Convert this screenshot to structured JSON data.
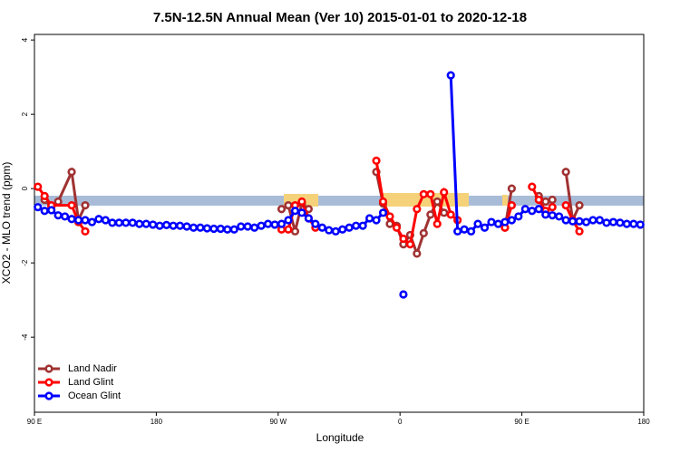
{
  "chart_data": {
    "type": "line",
    "title": "7.5N-12.5N Annual Mean (Ver 10)   2015-01-01 to 2020-12-18",
    "x_label": "Longitude",
    "y_label": "XCO2 - MLO trend (ppm)",
    "xlim": [
      90,
      540
    ],
    "ylim": [
      -6.02,
      4.15
    ],
    "xticks": [
      {
        "value": 90,
        "label": "90 E"
      },
      {
        "value": 180,
        "label": "180"
      },
      {
        "value": 270,
        "label": "90 W"
      },
      {
        "value": 360,
        "label": "0"
      },
      {
        "value": 450,
        "label": "90 E"
      },
      {
        "value": 540,
        "label": "180"
      }
    ],
    "yticks": [
      -4,
      -2,
      0,
      2,
      4
    ],
    "legend": "bottom-left",
    "series": [
      {
        "name": "Land Nadir",
        "color": "#a03232",
        "x": [
          97.5,
          102.5,
          107.5,
          117.5,
          122.5,
          127.5,
          null,
          272.5,
          277.5,
          282.5,
          287.5,
          292.5,
          null,
          342.5,
          347.5,
          352.5,
          357.5,
          362.5,
          367.5,
          372.5,
          377.5,
          382.5,
          387.5,
          392.5,
          null,
          437.5,
          442.5,
          null,
          462.5,
          467.5,
          472.5,
          null,
          482.5,
          487.5,
          492.5
        ],
        "values": [
          -0.3,
          -0.5,
          -0.35,
          0.45,
          -0.85,
          -0.45,
          null,
          -0.55,
          -0.45,
          -1.15,
          -0.4,
          -0.55,
          null,
          0.45,
          -0.4,
          -0.95,
          -1.0,
          -1.5,
          -1.25,
          -1.75,
          -1.2,
          -0.7,
          -0.35,
          -0.65,
          null,
          -1.05,
          0.0,
          null,
          -0.2,
          -0.35,
          -0.3,
          null,
          0.45,
          -0.85,
          -0.45
        ]
      },
      {
        "name": "Land Glint",
        "color": "#ff0000",
        "x": [
          92.5,
          97.5,
          102.5,
          117.5,
          122.5,
          127.5,
          null,
          272.5,
          277.5,
          282.5,
          287.5,
          292.5,
          297.5,
          null,
          342.5,
          347.5,
          352.5,
          357.5,
          362.5,
          367.5,
          372.5,
          377.5,
          382.5,
          387.5,
          392.5,
          397.5,
          402.5,
          null,
          437.5,
          442.5,
          null,
          457.5,
          462.5,
          467.5,
          472.5,
          null,
          482.5,
          487.5,
          492.5
        ],
        "values": [
          0.05,
          -0.2,
          -0.45,
          -0.45,
          -0.9,
          -1.15,
          null,
          -1.1,
          -1.1,
          -0.45,
          -0.35,
          -0.8,
          -1.05,
          null,
          0.75,
          -0.35,
          -0.75,
          -1.05,
          -1.35,
          -1.5,
          -0.55,
          -0.15,
          -0.15,
          -0.95,
          -0.1,
          -0.7,
          -0.85,
          null,
          -1.05,
          -0.45,
          null,
          0.05,
          -0.3,
          -0.6,
          -0.5,
          null,
          -0.45,
          -0.85,
          -1.15
        ]
      },
      {
        "name": "Ocean Glint",
        "color": "#0000ff",
        "x": [
          92.5,
          97.5,
          102.5,
          107.5,
          112.5,
          117.5,
          122.5,
          127.5,
          132.5,
          137.5,
          142.5,
          147.5,
          152.5,
          157.5,
          162.5,
          167.5,
          172.5,
          177.5,
          182.5,
          187.5,
          192.5,
          197.5,
          202.5,
          207.5,
          212.5,
          217.5,
          222.5,
          227.5,
          232.5,
          237.5,
          242.5,
          247.5,
          252.5,
          257.5,
          262.5,
          267.5,
          272.5,
          277.5,
          282.5,
          287.5,
          292.5,
          297.5,
          302.5,
          307.5,
          312.5,
          317.5,
          322.5,
          327.5,
          332.5,
          337.5,
          342.5,
          347.5,
          null,
          362.5,
          null,
          397.5,
          402.5,
          407.5,
          412.5,
          417.5,
          422.5,
          427.5,
          432.5,
          437.5,
          442.5,
          447.5,
          452.5,
          457.5,
          462.5,
          467.5,
          472.5,
          477.5,
          482.5,
          487.5,
          492.5,
          497.5,
          502.5,
          507.5,
          512.5,
          517.5,
          522.5,
          527.5,
          532.5,
          537.5
        ],
        "values": [
          -0.5,
          -0.6,
          -0.58,
          -0.72,
          -0.75,
          -0.82,
          -0.85,
          -0.85,
          -0.9,
          -0.82,
          -0.85,
          -0.92,
          -0.92,
          -0.92,
          -0.92,
          -0.95,
          -0.95,
          -0.97,
          -1.0,
          -0.98,
          -1.0,
          -1.0,
          -1.02,
          -1.05,
          -1.05,
          -1.07,
          -1.08,
          -1.08,
          -1.1,
          -1.1,
          -1.02,
          -1.02,
          -1.05,
          -1.0,
          -0.95,
          -0.97,
          -0.95,
          -0.85,
          -0.6,
          -0.65,
          -0.8,
          -0.95,
          -1.05,
          -1.12,
          -1.15,
          -1.1,
          -1.05,
          -1.0,
          -1.0,
          -0.8,
          -0.85,
          -0.65,
          null,
          -2.85,
          null,
          3.05,
          -1.15,
          -1.1,
          -1.15,
          -0.95,
          -1.05,
          -0.9,
          -0.95,
          -0.9,
          -0.85,
          -0.75,
          -0.55,
          -0.6,
          -0.55,
          -0.7,
          -0.72,
          -0.75,
          -0.85,
          -0.88,
          -0.88,
          -0.9,
          -0.85,
          -0.85,
          -0.92,
          -0.9,
          -0.92,
          -0.95,
          -0.95,
          -0.97
        ]
      }
    ]
  }
}
